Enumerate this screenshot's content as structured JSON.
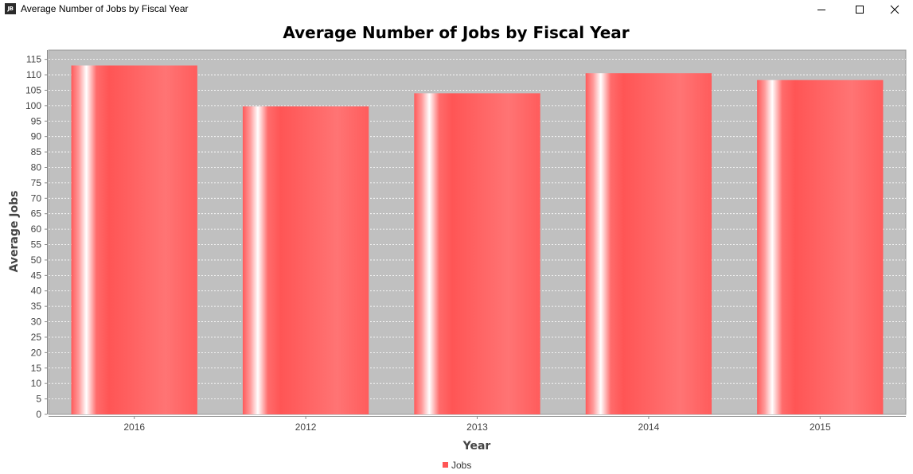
{
  "window": {
    "title": "Average Number of Jobs by Fiscal Year",
    "icon_label": "JB",
    "controls": {
      "minimize": "minimize-icon",
      "maximize": "maximize-icon",
      "close": "close-icon"
    }
  },
  "colors": {
    "plot_background": "#c0c0c0",
    "bar": "#ff5555",
    "grid": "#ffffff"
  },
  "chart_data": {
    "type": "bar",
    "title": "Average Number of Jobs by Fiscal Year",
    "xlabel": "Year",
    "ylabel": "Average Jobs",
    "categories": [
      "2016",
      "2012",
      "2013",
      "2014",
      "2015"
    ],
    "series": [
      {
        "name": "Jobs",
        "values": [
          113,
          99.8,
          104,
          110.5,
          108.3
        ]
      }
    ],
    "ylim": [
      0,
      118
    ],
    "yticks": [
      0,
      5,
      10,
      15,
      20,
      25,
      30,
      35,
      40,
      45,
      50,
      55,
      60,
      65,
      70,
      75,
      80,
      85,
      90,
      95,
      100,
      105,
      110,
      115
    ],
    "grid": true,
    "legend_position": "bottom"
  }
}
